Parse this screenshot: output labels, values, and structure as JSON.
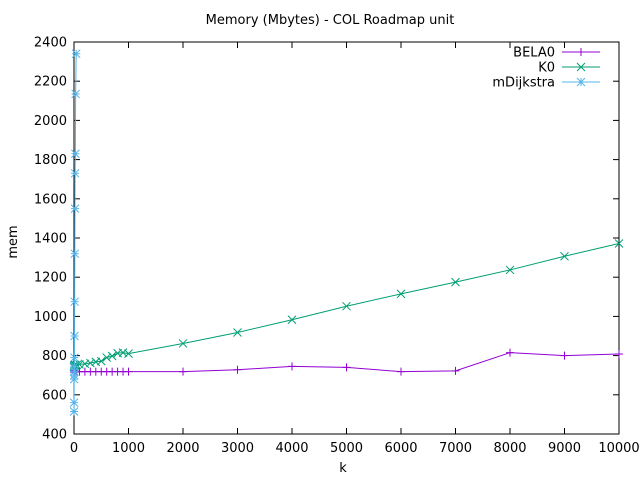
{
  "chart_data": {
    "type": "line",
    "title": "Memory (Mbytes) - COL Roadmap unit",
    "xlabel": "k",
    "ylabel": "mem",
    "xlim": [
      0,
      10000
    ],
    "ylim": [
      400,
      2400
    ],
    "xticks": [
      0,
      1000,
      2000,
      3000,
      4000,
      5000,
      6000,
      7000,
      8000,
      9000,
      10000
    ],
    "yticks": [
      400,
      600,
      800,
      1000,
      1200,
      1400,
      1600,
      1800,
      2000,
      2200,
      2400
    ],
    "grid": false,
    "legend_position": "top-right",
    "series": [
      {
        "name": "BELA0",
        "color": "#9400d3",
        "marker": "plus",
        "points": [
          [
            1,
            715
          ],
          [
            2,
            718
          ],
          [
            3,
            720
          ],
          [
            5,
            722
          ],
          [
            10,
            725
          ],
          [
            20,
            718
          ],
          [
            50,
            718
          ],
          [
            100,
            718
          ],
          [
            200,
            718
          ],
          [
            300,
            718
          ],
          [
            400,
            718
          ],
          [
            500,
            718
          ],
          [
            600,
            718
          ],
          [
            700,
            718
          ],
          [
            800,
            718
          ],
          [
            900,
            718
          ],
          [
            1000,
            718
          ],
          [
            2000,
            718
          ],
          [
            3000,
            728
          ],
          [
            4000,
            745
          ],
          [
            5000,
            740
          ],
          [
            6000,
            718
          ],
          [
            7000,
            722
          ],
          [
            8000,
            815
          ],
          [
            9000,
            800
          ],
          [
            10000,
            808
          ]
        ]
      },
      {
        "name": "K0",
        "color": "#009e73",
        "marker": "cross",
        "points": [
          [
            1,
            740
          ],
          [
            2,
            745
          ],
          [
            3,
            748
          ],
          [
            5,
            750
          ],
          [
            10,
            752
          ],
          [
            20,
            752
          ],
          [
            50,
            752
          ],
          [
            100,
            755
          ],
          [
            200,
            758
          ],
          [
            300,
            762
          ],
          [
            400,
            768
          ],
          [
            500,
            772
          ],
          [
            600,
            790
          ],
          [
            700,
            798
          ],
          [
            800,
            812
          ],
          [
            900,
            815
          ],
          [
            1000,
            810
          ],
          [
            2000,
            862
          ],
          [
            3000,
            918
          ],
          [
            4000,
            983
          ],
          [
            5000,
            1052
          ],
          [
            6000,
            1115
          ],
          [
            7000,
            1175
          ],
          [
            8000,
            1237
          ],
          [
            9000,
            1307
          ],
          [
            10000,
            1372
          ]
        ]
      },
      {
        "name": "mDijkstra",
        "color": "#56b4e9",
        "marker": "star",
        "points": [
          [
            1,
            515
          ],
          [
            2,
            560
          ],
          [
            3,
            680
          ],
          [
            4,
            700
          ],
          [
            5,
            720
          ],
          [
            6,
            745
          ],
          [
            8,
            790
          ],
          [
            10,
            900
          ],
          [
            12,
            1075
          ],
          [
            15,
            1320
          ],
          [
            18,
            1550
          ],
          [
            20,
            1730
          ],
          [
            25,
            1830
          ],
          [
            30,
            2135
          ],
          [
            40,
            2340
          ]
        ]
      }
    ]
  }
}
